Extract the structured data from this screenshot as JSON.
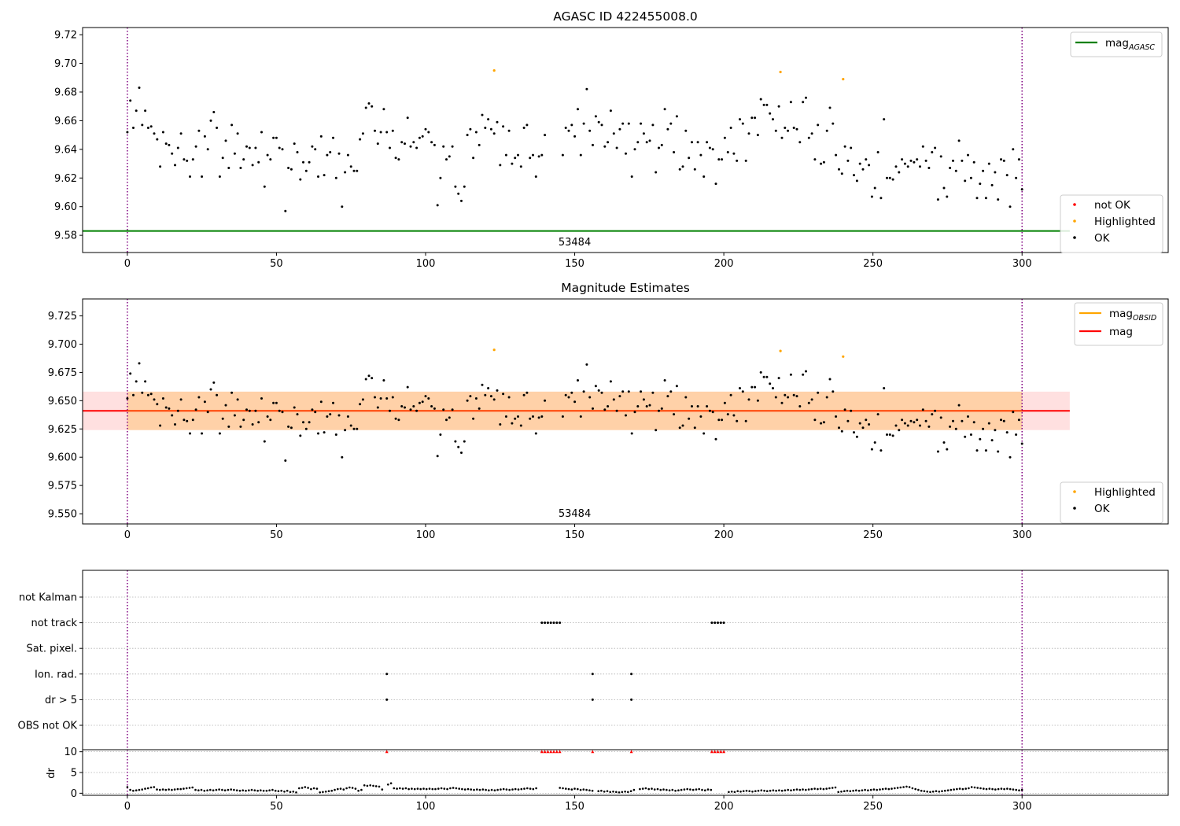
{
  "chart_data": [
    {
      "type": "scatter",
      "title": "AGASC ID 422455008.0",
      "annotation": "53484",
      "xlim": [
        -15,
        349
      ],
      "ylim": [
        9.568,
        9.725
      ],
      "xticks": [
        0,
        50,
        100,
        150,
        200,
        250,
        300
      ],
      "yticks": [
        9.58,
        9.6,
        9.62,
        9.64,
        9.66,
        9.68,
        9.7,
        9.72
      ],
      "ytick_labels": [
        "9.58",
        "9.60",
        "9.62",
        "9.64",
        "9.66",
        "9.68",
        "9.70",
        "9.72"
      ],
      "obs_bounds": [
        0,
        300
      ],
      "mag_agasc": 9.583,
      "legend_lines": [
        {
          "name": "mag",
          "sub": "AGASC",
          "color": "#008000"
        }
      ],
      "legend_points": [
        {
          "name": "not OK",
          "color": "#ff0000"
        },
        {
          "name": "Highlighted",
          "color": "#ffa500"
        },
        {
          "name": "OK",
          "color": "#000000"
        }
      ],
      "highlighted": [
        [
          123,
          9.695
        ],
        [
          219,
          9.694
        ],
        [
          240,
          9.689
        ]
      ],
      "ok_segments": [
        {
          "x0": 0,
          "x1": 140,
          "values": [
            9.652,
            9.674,
            9.655,
            9.667,
            9.683,
            9.657,
            9.667,
            9.655,
            9.656,
            9.651,
            9.647,
            9.628,
            9.652,
            9.644,
            9.643,
            9.637,
            9.629,
            9.641,
            9.651,
            9.633,
            9.632,
            9.621,
            9.633,
            9.642,
            9.653,
            9.621,
            9.649,
            9.64,
            9.66,
            9.666,
            9.655,
            9.621,
            9.634,
            9.646,
            9.627,
            9.657,
            9.637,
            9.651,
            9.627,
            9.633,
            9.642,
            9.641,
            9.629,
            9.641,
            9.631,
            9.652,
            9.614,
            9.636,
            9.633,
            9.648,
            9.648,
            9.641,
            9.64,
            9.597,
            9.627,
            9.626,
            9.644,
            9.638,
            9.619,
            9.631,
            9.625,
            9.631,
            9.642,
            9.64,
            9.621,
            9.649,
            9.622,
            9.636,
            9.638,
            9.648,
            9.62,
            9.637,
            9.6,
            9.624,
            9.636,
            9.628,
            9.625,
            9.625,
            9.647,
            9.651,
            9.669,
            9.672,
            9.67,
            9.653,
            9.644,
            9.652,
            9.668,
            9.652,
            9.641,
            9.653,
            9.634,
            9.633,
            9.645,
            9.644,
            9.662,
            9.642,
            9.645,
            9.641,
            9.648,
            9.649,
            9.654,
            9.652,
            9.645,
            9.643,
            9.601,
            9.62,
            9.642,
            9.633,
            9.635,
            9.642,
            9.614,
            9.609,
            9.604,
            9.614,
            9.65,
            9.654,
            9.634,
            9.652,
            9.643,
            9.664,
            9.655,
            9.661,
            9.654,
            9.651,
            9.659,
            9.629,
            9.656,
            9.636,
            9.653,
            9.63,
            9.634,
            9.636,
            9.628,
            9.655,
            9.657,
            9.634,
            9.636,
            9.621,
            9.635,
            9.636,
            9.65
          ]
        },
        {
          "x0": 146,
          "x1": 300,
          "values": [
            9.636,
            9.655,
            9.653,
            9.657,
            9.649,
            9.668,
            9.636,
            9.658,
            9.682,
            9.653,
            9.643,
            9.663,
            9.659,
            9.657,
            9.642,
            9.645,
            9.667,
            9.651,
            9.641,
            9.654,
            9.658,
            9.637,
            9.658,
            9.621,
            9.64,
            9.645,
            9.658,
            9.651,
            9.645,
            9.646,
            9.657,
            9.624,
            9.641,
            9.643,
            9.668,
            9.654,
            9.658,
            9.638,
            9.663,
            9.626,
            9.628,
            9.653,
            9.634,
            9.645,
            9.626,
            9.645,
            9.636,
            9.621,
            9.645,
            9.641,
            9.64,
            9.616,
            9.633,
            9.633,
            9.648,
            9.638,
            9.655,
            9.637,
            9.632,
            9.661,
            9.658,
            9.632,
            9.651,
            9.662,
            9.662,
            9.65,
            9.675,
            9.671,
            9.671,
            9.665,
            9.661,
            9.653,
            9.67,
            9.648,
            9.655,
            9.653,
            9.673,
            9.655,
            9.654,
            9.645,
            9.673,
            9.676,
            9.648,
            9.651,
            9.633,
            9.657,
            9.63,
            9.631,
            9.653,
            9.669,
            9.658,
            9.636,
            9.626,
            9.623,
            9.642,
            9.632,
            9.641,
            9.622,
            9.618,
            9.63,
            9.626,
            9.633,
            9.629,
            9.607,
            9.613,
            9.638,
            9.606,
            9.661,
            9.62,
            9.62,
            9.619,
            9.628,
            9.624,
            9.633,
            9.63,
            9.628,
            9.632,
            9.631,
            9.633,
            9.628,
            9.642,
            9.632,
            9.627,
            9.638,
            9.641,
            9.605,
            9.635,
            9.613,
            9.607,
            9.627,
            9.632,
            9.625,
            9.646,
            9.632,
            9.618,
            9.636,
            9.62,
            9.631,
            9.606,
            9.616,
            9.625,
            9.606,
            9.63,
            9.615,
            9.624,
            9.605,
            9.633,
            9.632,
            9.622,
            9.6,
            9.64,
            9.62,
            9.633,
            9.612
          ]
        }
      ]
    },
    {
      "type": "scatter",
      "title": "Magnitude Estimates",
      "annotation": "53484",
      "xlim": [
        -15,
        349
      ],
      "ylim": [
        9.541,
        9.74
      ],
      "xticks": [
        0,
        50,
        100,
        150,
        200,
        250,
        300
      ],
      "yticks": [
        9.55,
        9.575,
        9.6,
        9.625,
        9.65,
        9.675,
        9.7,
        9.725
      ],
      "ytick_labels": [
        "9.550",
        "9.575",
        "9.600",
        "9.625",
        "9.650",
        "9.675",
        "9.700",
        "9.725"
      ],
      "obs_bounds": [
        0,
        300
      ],
      "mag": 9.641,
      "mag_band": [
        9.624,
        9.658
      ],
      "mag_band_xrange": [
        -15,
        316
      ],
      "obsid_band_xrange": [
        0,
        300
      ],
      "legend_lines": [
        {
          "name": "mag",
          "sub": "OBSID",
          "color": "#ffa500"
        },
        {
          "name": "mag",
          "sub": "",
          "color": "#ff0000"
        }
      ],
      "legend_points": [
        {
          "name": "Highlighted",
          "color": "#ffa500"
        },
        {
          "name": "OK",
          "color": "#000000"
        }
      ],
      "same_points_as_panel": 0
    },
    {
      "type": "scatter",
      "title": "",
      "xlim": [
        -15,
        349
      ],
      "xticks": [
        0,
        50,
        100,
        150,
        200,
        250,
        300
      ],
      "obs_bounds": [
        0,
        300
      ],
      "flag_rows": [
        "not Kalman",
        "not track",
        "Sat. pixel.",
        "Ion. rad.",
        "dr > 5",
        "OBS not OK"
      ],
      "flag_points": {
        "not Kalman": [],
        "not track": [
          139,
          140,
          141,
          142,
          143,
          144,
          145,
          196,
          197,
          198,
          199,
          200
        ],
        "Sat. pixel.": [],
        "Ion. rad.": [
          87,
          156,
          169
        ],
        "dr > 5": [
          87,
          156,
          169
        ],
        "OBS not OK": []
      },
      "dr": {
        "ylabel": "dr",
        "ylim": [
          -0.5,
          10.5
        ],
        "yticks": [
          0,
          5,
          10
        ],
        "ytick_labels": [
          "0",
          "5",
          "10"
        ],
        "clipped_at": 10,
        "clipped_x": [
          87,
          139,
          140,
          141,
          142,
          143,
          144,
          145,
          156,
          169,
          196,
          197,
          198,
          199,
          200
        ],
        "values": [
          1.5,
          0.8,
          0.6,
          0.7,
          0.8,
          0.9,
          1.1,
          1.2,
          1.4,
          1.5,
          0.9,
          0.8,
          0.9,
          0.8,
          0.9,
          0.8,
          0.9,
          1.0,
          1.0,
          1.1,
          1.2,
          1.3,
          1.4,
          0.8,
          0.7,
          0.8,
          0.6,
          0.7,
          0.8,
          0.7,
          0.8,
          0.9,
          0.8,
          0.7,
          0.8,
          0.9,
          0.8,
          0.7,
          0.6,
          0.7,
          0.6,
          0.7,
          0.8,
          0.7,
          0.6,
          0.7,
          0.6,
          0.6,
          0.7,
          0.8,
          0.6,
          0.5,
          0.6,
          0.4,
          0.6,
          0.3,
          0.4,
          0.2,
          1.2,
          1.3,
          1.5,
          1.3,
          1.0,
          1.2,
          1.1,
          0.2,
          0.3,
          0.4,
          0.5,
          0.6,
          0.8,
          1.0,
          1.1,
          0.9,
          1.2,
          1.4,
          1.3,
          1.1,
          0.6,
          0.8,
          1.9,
          1.8,
          1.9,
          1.8,
          1.7,
          1.6,
          0.9,
          10,
          2.1,
          2.4,
          1.2,
          1.1,
          1.2,
          1.1,
          1.2,
          1.0,
          1.1,
          1.0,
          1.1,
          1.0,
          1.1,
          1.0,
          1.1,
          1.0,
          1.0,
          1.1,
          1.2,
          1.1,
          1.0,
          1.2,
          1.3,
          1.2,
          1.1,
          1.0,
          0.9,
          1.0,
          0.9,
          0.8,
          0.9,
          0.8,
          0.9,
          0.8,
          0.7,
          0.8,
          0.7,
          0.8,
          0.9,
          1.0,
          0.9,
          0.8,
          0.9,
          1.0,
          0.9,
          1.0,
          1.1,
          1.2,
          1.1,
          1.0,
          1.2,
          10,
          10,
          10,
          10,
          10,
          10,
          10,
          1.3,
          1.2,
          1.1,
          1.0,
          0.9,
          1.1,
          1.0,
          0.8,
          0.9,
          0.8,
          0.7,
          0.6,
          10,
          0.5,
          0.6,
          0.4,
          0.5,
          0.3,
          0.4,
          0.3,
          0.2,
          0.3,
          0.4,
          0.3,
          0.5,
          0.8,
          10,
          1.0,
          1.1,
          1.2,
          1.0,
          1.1,
          0.9,
          1.0,
          0.8,
          0.9,
          0.8,
          0.7,
          0.8,
          0.6,
          0.7,
          0.8,
          0.9,
          1.0,
          0.9,
          0.8,
          0.9,
          1.0,
          0.8,
          0.7,
          0.9,
          0.8,
          10,
          10,
          10,
          10,
          10,
          0.3,
          0.4,
          0.3,
          0.5,
          0.4,
          0.5,
          0.6,
          0.5,
          0.4,
          0.5,
          0.6,
          0.7,
          0.6,
          0.5,
          0.6,
          0.7,
          0.6,
          0.7,
          0.6,
          0.7,
          0.8,
          0.7,
          0.8,
          0.9,
          0.8,
          0.9,
          0.8,
          0.9,
          1.0,
          1.1,
          1.0,
          1.1,
          1.0,
          1.1,
          1.2,
          1.3,
          1.4,
          0.3,
          0.4,
          0.5,
          0.6,
          0.5,
          0.6,
          0.7,
          0.6,
          0.7,
          0.8,
          0.7,
          0.8,
          0.9,
          0.8,
          0.9,
          1.0,
          1.1,
          1.0,
          1.1,
          1.2,
          1.3,
          1.4,
          1.5,
          1.6,
          1.5,
          1.2,
          1.0,
          0.8,
          0.6,
          0.5,
          0.4,
          0.3,
          0.4,
          0.5,
          0.4,
          0.5,
          0.6,
          0.7,
          0.8,
          0.9,
          1.0,
          1.1,
          1.0,
          1.1,
          1.2,
          1.5,
          1.4,
          1.3,
          1.2,
          1.1,
          1.0,
          1.1,
          1.0,
          0.9,
          1.0,
          1.1,
          1.0,
          1.1,
          1.0,
          0.9,
          0.8,
          0.7,
          0.8
        ]
      }
    }
  ]
}
